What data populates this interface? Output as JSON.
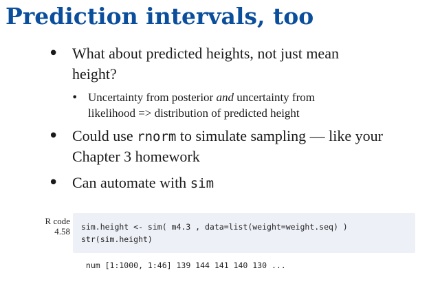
{
  "title": "Prediction intervals, too",
  "bullets": {
    "b1_line1": "What about predicted heights, not just mean",
    "b1_line2": "height?",
    "b1a_pre": "Uncertainty from posterior ",
    "b1a_em": "and",
    "b1a_post": " uncertainty from",
    "b1a_line2": "likelihood => distribution of predicted height",
    "b2_pre": "Could use ",
    "b2_code": "rnorm",
    "b2_post": " to simulate sampling — like your",
    "b2_line2": "Chapter 3 homework",
    "b3_pre": "Can automate with ",
    "b3_code": "sim"
  },
  "code_label": {
    "line1": "R code",
    "line2": "4.58"
  },
  "code": {
    "line1": "sim.height <- sim( m4.3 , data=list(weight=weight.seq) )",
    "line2": "str(sim.height)"
  },
  "output": " num [1:1000, 1:46] 139 144 141 140 130 ...",
  "colors": {
    "title": "#0b4f9c",
    "code_bg": "#eef0f8"
  }
}
